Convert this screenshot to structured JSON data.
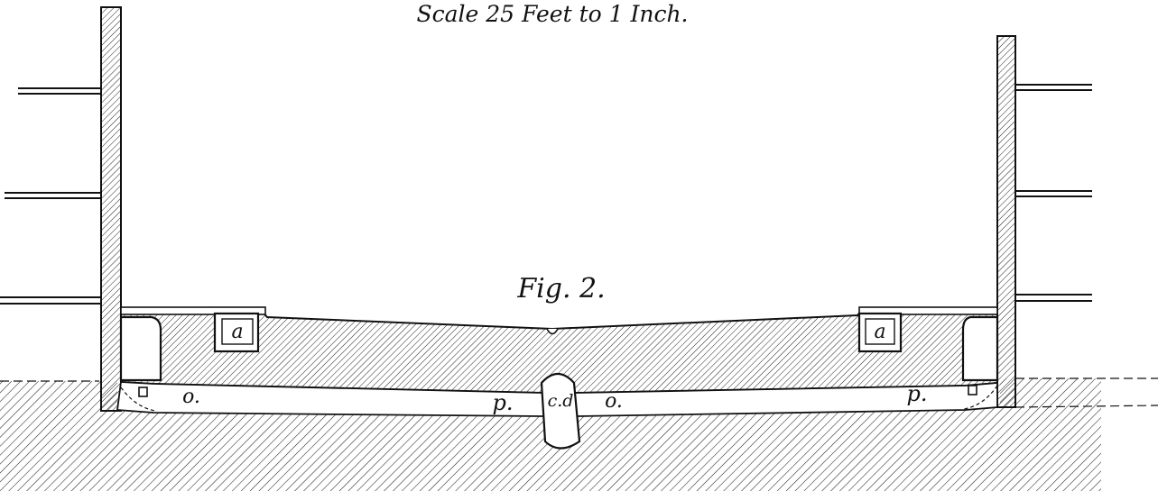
{
  "caption": {
    "scale": "Scale 25 Feet to 1 Inch.",
    "figure": "Fig. 2."
  },
  "labels": {
    "area_left": "a",
    "area_right": "a",
    "channel_left": "o.",
    "channel_right": "o.",
    "pipe_left": "p.",
    "pipe_right": "p.",
    "drain_center": "c.d"
  }
}
